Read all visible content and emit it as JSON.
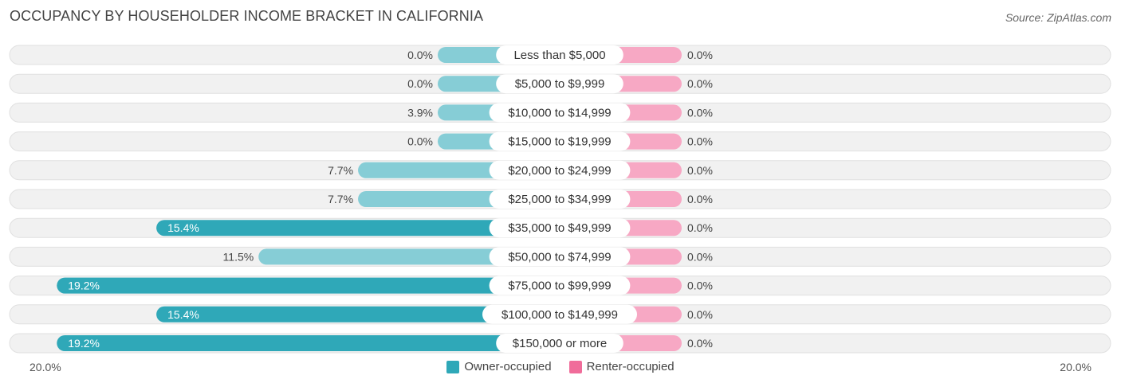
{
  "title": "OCCUPANCY BY HOUSEHOLDER INCOME BRACKET IN CALIFORNIA",
  "source": "Source: ZipAtlas.com",
  "colors": {
    "owner_dark": "#2fa8b8",
    "owner_light": "#86cdd6",
    "renter": "#f7a8c4",
    "renter_legend": "#f06c9a",
    "track": "#f1f1f1",
    "track_border": "#e0e0e0"
  },
  "chart_data": {
    "type": "bar",
    "orientation": "diverging-horizontal",
    "xlim": [
      -20,
      20
    ],
    "axis_labels": {
      "left": "20.0%",
      "right": "20.0%"
    },
    "legend": [
      {
        "name": "Owner-occupied",
        "color": "#2fa8b8"
      },
      {
        "name": "Renter-occupied",
        "color": "#f06c9a"
      }
    ],
    "categories": [
      "Less than $5,000",
      "$5,000 to $9,999",
      "$10,000 to $14,999",
      "$15,000 to $19,999",
      "$20,000 to $24,999",
      "$25,000 to $34,999",
      "$35,000 to $49,999",
      "$50,000 to $74,999",
      "$75,000 to $99,999",
      "$100,000 to $149,999",
      "$150,000 or more"
    ],
    "series": [
      {
        "name": "Owner-occupied",
        "values": [
          0.0,
          0.0,
          3.9,
          0.0,
          7.7,
          7.7,
          15.4,
          11.5,
          19.2,
          15.4,
          19.2
        ],
        "labels": [
          "0.0%",
          "0.0%",
          "3.9%",
          "0.0%",
          "7.7%",
          "7.7%",
          "15.4%",
          "11.5%",
          "19.2%",
          "15.4%",
          "19.2%"
        ]
      },
      {
        "name": "Renter-occupied",
        "values": [
          0.0,
          0.0,
          0.0,
          0.0,
          0.0,
          0.0,
          0.0,
          0.0,
          0.0,
          0.0,
          0.0
        ],
        "labels": [
          "0.0%",
          "0.0%",
          "0.0%",
          "0.0%",
          "0.0%",
          "0.0%",
          "0.0%",
          "0.0%",
          "0.0%",
          "0.0%",
          "0.0%"
        ]
      }
    ]
  }
}
